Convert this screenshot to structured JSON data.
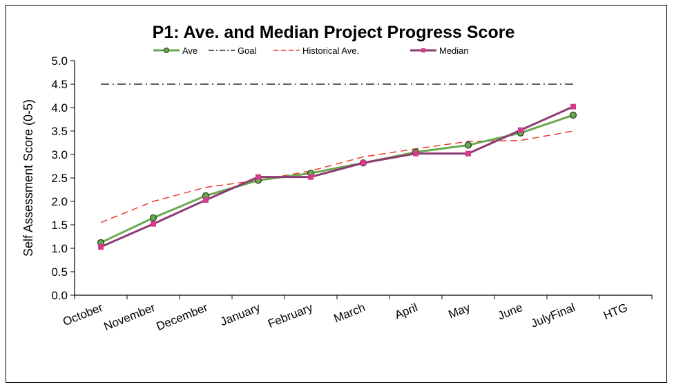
{
  "chart_data": {
    "type": "line",
    "title": "P1: Ave. and Median Project Progress Score",
    "ylabel": "Self Assessment Score (0-5)",
    "xlabel": "",
    "ylim": [
      0,
      5
    ],
    "ytick_labels": [
      "0.0",
      "0.5",
      "1.0",
      "1.5",
      "2.0",
      "2.5",
      "3.0",
      "3.5",
      "4.0",
      "4.5",
      "5.0"
    ],
    "categories": [
      "October",
      "November",
      "December",
      "January",
      "February",
      "March",
      "April",
      "May",
      "June",
      "JulyFinal",
      "HTG"
    ],
    "legend_position": "top",
    "grid": false,
    "series": [
      {
        "name": "Ave",
        "color": "#6aa84f",
        "style": "solid-circle",
        "values": [
          1.12,
          1.65,
          2.12,
          2.45,
          2.6,
          2.82,
          3.05,
          3.2,
          3.46,
          3.84,
          null
        ]
      },
      {
        "name": "Goal",
        "color": "#000000",
        "style": "dashdot",
        "values": [
          4.5,
          4.5,
          4.5,
          4.5,
          4.5,
          4.5,
          4.5,
          4.5,
          4.5,
          4.5,
          null
        ]
      },
      {
        "name": "Historical Ave.",
        "color": "#ee3b2c",
        "style": "dashed",
        "values": [
          1.55,
          2.0,
          2.3,
          2.45,
          2.65,
          2.95,
          3.12,
          3.28,
          3.3,
          3.5,
          null
        ]
      },
      {
        "name": "Median",
        "color": "#8e3a73",
        "marker_color": "#d63a8c",
        "style": "solid-square",
        "values": [
          1.03,
          1.52,
          2.03,
          2.52,
          2.52,
          2.82,
          3.02,
          3.02,
          3.52,
          4.02,
          null
        ]
      }
    ]
  }
}
